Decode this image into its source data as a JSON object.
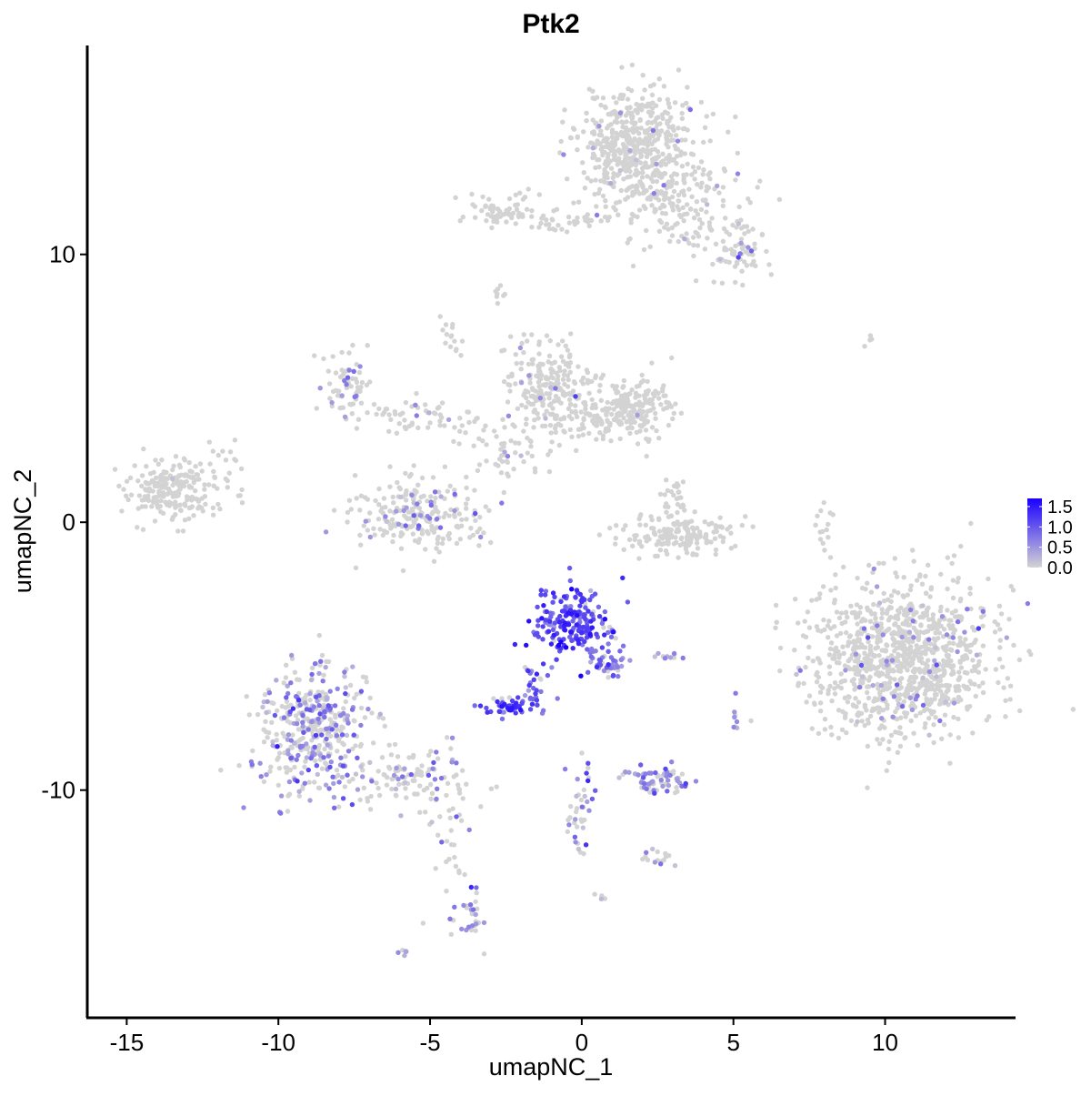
{
  "chart_data": {
    "type": "scatter",
    "title": "Ptk2",
    "xlabel": "umapNC_1",
    "ylabel": "umapNC_2",
    "xlim": [
      -16.3,
      14.3
    ],
    "ylim": [
      -18.5,
      17.8
    ],
    "x_ticks": [
      -15,
      -10,
      -5,
      0,
      5,
      10
    ],
    "x_tick_labels": [
      "-15",
      "-10",
      "-5",
      "0",
      "5",
      "10"
    ],
    "y_ticks": [
      -10,
      0,
      10
    ],
    "y_tick_labels": [
      "-10",
      "0",
      "10"
    ],
    "grid": false,
    "legend": {
      "placement": "right",
      "type": "colorbar",
      "labels": [
        "1.5",
        "1.0",
        "0.5",
        "0.0"
      ],
      "values": [
        1.5,
        1.0,
        0.5,
        0.0
      ],
      "range": [
        0,
        1.7
      ],
      "color_low": "#d3d3d3",
      "color_high": "#1a00ff"
    },
    "point_color_low": "#d3d3d3",
    "point_color_high": "#1a00ff",
    "clusters": [
      {
        "cx": 1.8,
        "cy": 14.1,
        "sx": 1.0,
        "sy": 1.1,
        "n": 520,
        "expr_frac": 0.02,
        "expr_mean": 0.5
      },
      {
        "cx": 3.4,
        "cy": 11.8,
        "sx": 1.1,
        "sy": 0.9,
        "n": 160,
        "expr_frac": 0.04,
        "expr_mean": 0.6
      },
      {
        "cx": 5.3,
        "cy": 10.1,
        "sx": 0.5,
        "sy": 0.7,
        "n": 60,
        "expr_frac": 0.1,
        "expr_mean": 0.6
      },
      {
        "cx": -2.7,
        "cy": 11.6,
        "sx": 0.7,
        "sy": 0.3,
        "n": 70,
        "expr_frac": 0.0,
        "expr_mean": 0.0
      },
      {
        "cx": -0.6,
        "cy": 11.2,
        "sx": 0.7,
        "sy": 0.2,
        "n": 30,
        "expr_frac": 0.0,
        "expr_mean": 0.0
      },
      {
        "cx": -2.7,
        "cy": 8.5,
        "sx": 0.12,
        "sy": 0.15,
        "n": 8,
        "expr_frac": 0.0,
        "expr_mean": 0.0
      },
      {
        "cx": -1.0,
        "cy": 5.0,
        "sx": 0.8,
        "sy": 0.9,
        "n": 230,
        "expr_frac": 0.04,
        "expr_mean": 0.5
      },
      {
        "cx": 1.8,
        "cy": 4.3,
        "sx": 0.6,
        "sy": 0.6,
        "n": 150,
        "expr_frac": 0.03,
        "expr_mean": 0.5
      },
      {
        "cx": 0.6,
        "cy": 3.9,
        "sx": 0.9,
        "sy": 0.4,
        "n": 90,
        "expr_frac": 0.02,
        "expr_mean": 0.5
      },
      {
        "cx": -7.8,
        "cy": 5.2,
        "sx": 0.4,
        "sy": 0.6,
        "n": 70,
        "expr_frac": 0.25,
        "expr_mean": 0.6
      },
      {
        "cx": -5.3,
        "cy": 3.9,
        "sx": 0.9,
        "sy": 0.35,
        "n": 60,
        "expr_frac": 0.1,
        "expr_mean": 0.6
      },
      {
        "cx": -4.3,
        "cy": 6.8,
        "sx": 0.2,
        "sy": 0.4,
        "n": 15,
        "expr_frac": 0.1,
        "expr_mean": 0.5
      },
      {
        "cx": -2.4,
        "cy": 2.6,
        "sx": 0.8,
        "sy": 0.6,
        "n": 50,
        "expr_frac": 0.05,
        "expr_mean": 0.5
      },
      {
        "cx": -5.4,
        "cy": 0.3,
        "sx": 1.0,
        "sy": 0.65,
        "n": 230,
        "expr_frac": 0.1,
        "expr_mean": 0.6
      },
      {
        "cx": -13.4,
        "cy": 1.2,
        "sx": 0.8,
        "sy": 0.6,
        "n": 230,
        "expr_frac": 0.01,
        "expr_mean": 0.5
      },
      {
        "cx": -11.7,
        "cy": 2.4,
        "sx": 0.3,
        "sy": 0.3,
        "n": 10,
        "expr_frac": 0.0,
        "expr_mean": 0.0
      },
      {
        "cx": 3.2,
        "cy": -0.5,
        "sx": 1.0,
        "sy": 0.35,
        "n": 160,
        "expr_frac": 0.0,
        "expr_mean": 0.0
      },
      {
        "cx": 3.1,
        "cy": 0.8,
        "sx": 0.25,
        "sy": 0.5,
        "n": 30,
        "expr_frac": 0.0,
        "expr_mean": 0.0
      },
      {
        "cx": 8.0,
        "cy": -0.3,
        "sx": 0.15,
        "sy": 0.6,
        "n": 15,
        "expr_frac": 0.0,
        "expr_mean": 0.0
      },
      {
        "cx": 10.6,
        "cy": -5.1,
        "sx": 1.5,
        "sy": 1.4,
        "n": 1050,
        "expr_frac": 0.07,
        "expr_mean": 0.5
      },
      {
        "cx": -0.3,
        "cy": -3.7,
        "sx": 0.7,
        "sy": 0.6,
        "n": 200,
        "expr_frac": 0.92,
        "expr_mean": 1.05
      },
      {
        "cx": 0.9,
        "cy": -5.3,
        "sx": 0.35,
        "sy": 0.4,
        "n": 45,
        "expr_frac": 0.8,
        "expr_mean": 0.7
      },
      {
        "cx": -1.5,
        "cy": -6.2,
        "sx": 0.3,
        "sy": 0.5,
        "n": 30,
        "expr_frac": 0.8,
        "expr_mean": 0.8
      },
      {
        "cx": -2.5,
        "cy": -6.9,
        "sx": 0.35,
        "sy": 0.18,
        "n": 45,
        "expr_frac": 0.9,
        "expr_mean": 1.1
      },
      {
        "cx": -8.8,
        "cy": -7.8,
        "sx": 0.9,
        "sy": 1.2,
        "n": 420,
        "expr_frac": 0.45,
        "expr_mean": 0.6
      },
      {
        "cx": -5.8,
        "cy": -9.6,
        "sx": 1.2,
        "sy": 0.5,
        "n": 110,
        "expr_frac": 0.3,
        "expr_mean": 0.6
      },
      {
        "cx": -4.4,
        "cy": -12.0,
        "sx": 0.5,
        "sy": 1.3,
        "n": 40,
        "expr_frac": 0.2,
        "expr_mean": 0.6
      },
      {
        "cx": -3.6,
        "cy": -14.8,
        "sx": 0.2,
        "sy": 0.5,
        "n": 25,
        "expr_frac": 0.6,
        "expr_mean": 0.7
      },
      {
        "cx": -5.9,
        "cy": -16.0,
        "sx": 0.1,
        "sy": 0.08,
        "n": 6,
        "expr_frac": 0.8,
        "expr_mean": 0.6
      },
      {
        "cx": 0.0,
        "cy": -10.8,
        "sx": 0.25,
        "sy": 1.0,
        "n": 40,
        "expr_frac": 0.65,
        "expr_mean": 0.7
      },
      {
        "cx": 2.4,
        "cy": -9.6,
        "sx": 0.6,
        "sy": 0.25,
        "n": 70,
        "expr_frac": 0.6,
        "expr_mean": 0.6
      },
      {
        "cx": 2.4,
        "cy": -12.5,
        "sx": 0.3,
        "sy": 0.2,
        "n": 15,
        "expr_frac": 0.5,
        "expr_mean": 0.6
      },
      {
        "cx": 2.8,
        "cy": -5.0,
        "sx": 0.3,
        "sy": 0.1,
        "n": 10,
        "expr_frac": 0.5,
        "expr_mean": 0.5
      },
      {
        "cx": 5.1,
        "cy": -7.3,
        "sx": 0.1,
        "sy": 0.3,
        "n": 8,
        "expr_frac": 0.4,
        "expr_mean": 0.5
      },
      {
        "cx": 9.5,
        "cy": 6.7,
        "sx": 0.2,
        "sy": 0.1,
        "n": 5,
        "expr_frac": 0.0,
        "expr_mean": 0.0
      },
      {
        "cx": 0.6,
        "cy": -14.0,
        "sx": 0.08,
        "sy": 0.08,
        "n": 4,
        "expr_frac": 0.5,
        "expr_mean": 0.5
      }
    ]
  }
}
